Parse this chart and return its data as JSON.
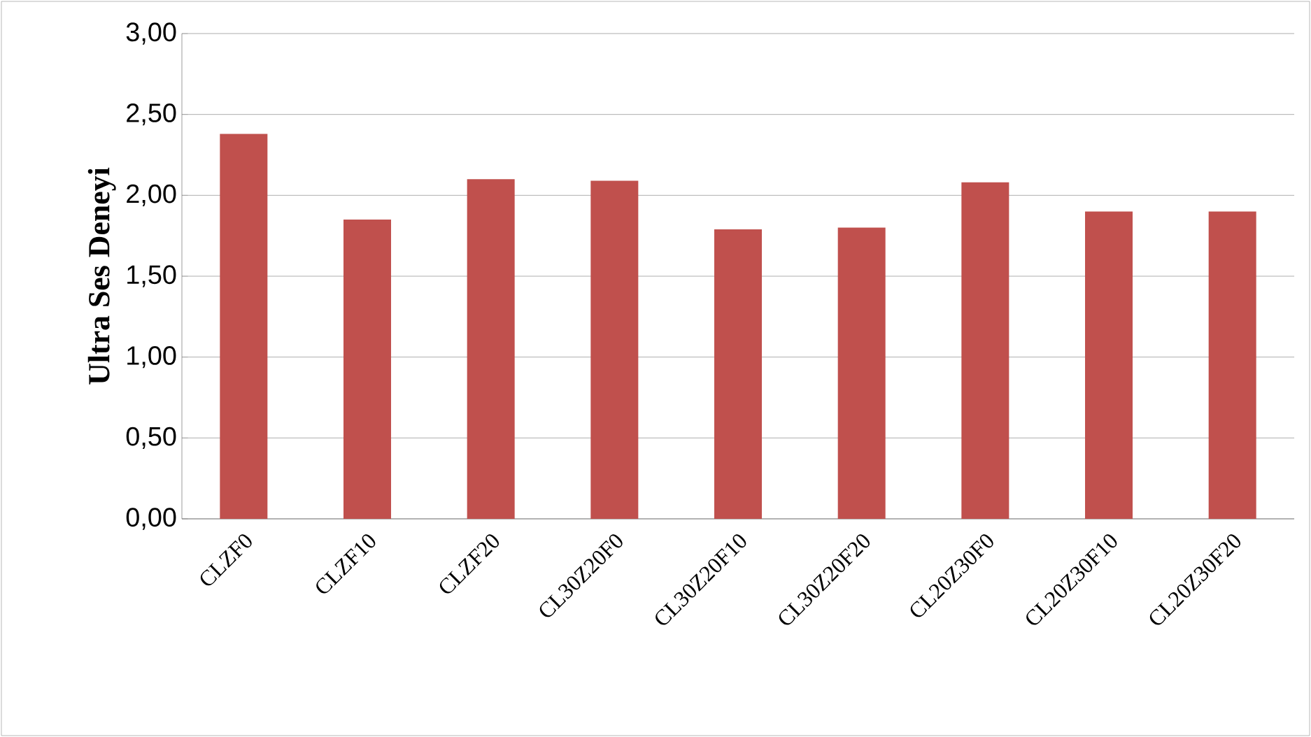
{
  "chart_data": {
    "type": "bar",
    "ylabel": "Ultra Ses Deneyi",
    "categories": [
      "CLZF0",
      "CLZF10",
      "CLZF20",
      "CL30Z20F0",
      "CL30Z20F10",
      "CL30Z20F20",
      "CL20Z30F0",
      "CL20Z30F10",
      "CL20Z30F20"
    ],
    "values": [
      2.38,
      1.85,
      2.1,
      2.09,
      1.79,
      1.8,
      2.08,
      1.9,
      1.9
    ],
    "color": "#c0504d",
    "ylim": [
      0,
      3
    ],
    "yticks": [
      {
        "value": 0,
        "label": "0,00"
      },
      {
        "value": 0.5,
        "label": "0,50"
      },
      {
        "value": 1,
        "label": "1,00"
      },
      {
        "value": 1.5,
        "label": "1,50"
      },
      {
        "value": 2,
        "label": "2,00"
      },
      {
        "value": 2.5,
        "label": "2,50"
      },
      {
        "value": 3,
        "label": "3,00"
      }
    ],
    "grid": "y"
  }
}
